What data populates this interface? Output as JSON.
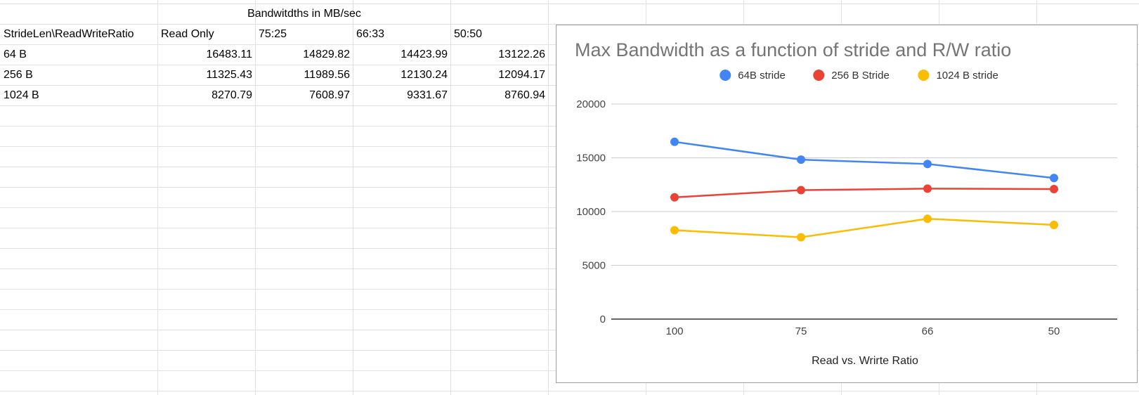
{
  "sheet": {
    "header_title": "Bandwitdths in MB/sec",
    "column_headers": [
      "StrideLen\\ReadWriteRatio",
      "Read Only",
      "75:25",
      "66:33",
      "50:50"
    ],
    "rows": [
      {
        "label": "64 B",
        "values": [
          "16483.11",
          "14829.82",
          "14423.99",
          "13122.26"
        ]
      },
      {
        "label": "256 B",
        "values": [
          "11325.43",
          "11989.56",
          "12130.24",
          "12094.17"
        ]
      },
      {
        "label": "1024 B",
        "values": [
          "8270.79",
          "7608.97",
          "9331.67",
          "8760.94"
        ]
      }
    ]
  },
  "chart_data": {
    "type": "line",
    "title": "Max Bandwidth as a function of stride and R/W ratio",
    "xlabel": "Read vs. Wrirte Ratio",
    "ylabel": "",
    "categories": [
      "100",
      "75",
      "66",
      "50"
    ],
    "ylim": [
      0,
      20000
    ],
    "yticks": [
      0,
      5000,
      10000,
      15000,
      20000
    ],
    "grid": true,
    "legend": "top",
    "series": [
      {
        "name": "64B stride",
        "color": "#4285f4",
        "values": [
          16483.11,
          14829.82,
          14423.99,
          13122.26
        ]
      },
      {
        "name": "256 B Stride",
        "color": "#ea4335",
        "values": [
          11325.43,
          11989.56,
          12130.24,
          12094.17
        ]
      },
      {
        "name": "1024 B stride",
        "color": "#fbbc04",
        "values": [
          8270.79,
          7608.97,
          9331.67,
          8760.94
        ]
      }
    ]
  }
}
